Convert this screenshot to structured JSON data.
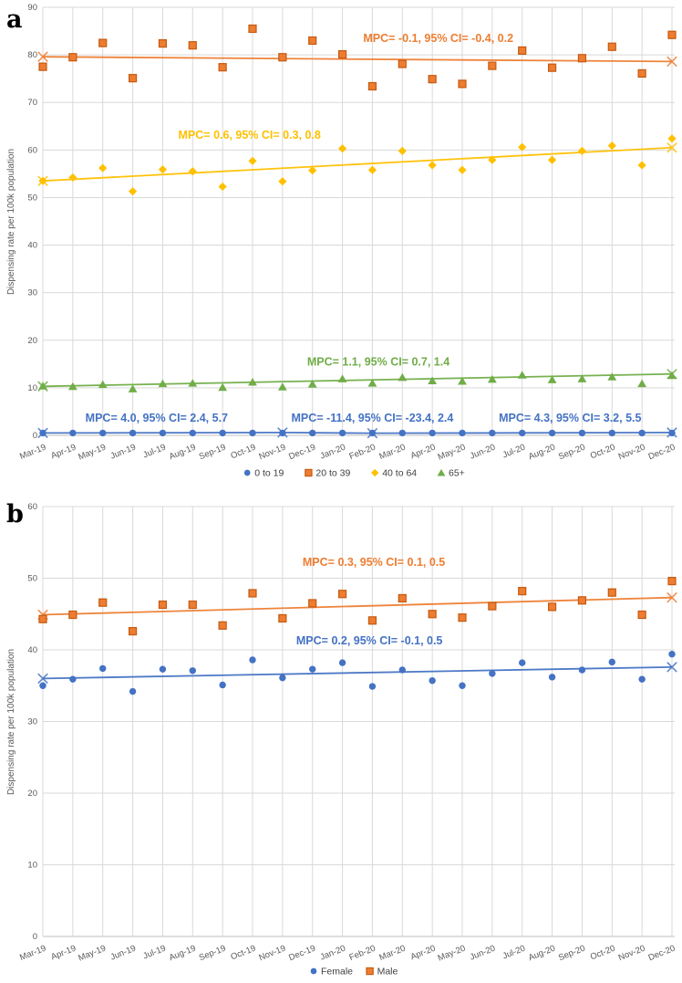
{
  "colors": {
    "blue": "#4472C4",
    "orange": "#ED7D31",
    "orange_border": "#C55A11",
    "yellow": "#FFC000",
    "green": "#70AD47",
    "grid": "#d9d9d9",
    "axis_text": "#595959"
  },
  "chart_data": [
    {
      "type": "scatter",
      "panel_label": "a",
      "ylabel": "Dispensing rate per 100k population",
      "ylim": [
        0,
        90
      ],
      "ytick_step": 10,
      "grid": true,
      "legend_position": "bottom",
      "x": [
        "Mar-19",
        "Apr-19",
        "May-19",
        "Jun-19",
        "Jul-19",
        "Aug-19",
        "Sep-19",
        "Oct-19",
        "Nov-19",
        "Dec-19",
        "Jan-20",
        "Feb-20",
        "Mar-20",
        "Apr-20",
        "May-20",
        "Jun-20",
        "Jul-20",
        "Aug-20",
        "Sep-20",
        "Oct-20",
        "Nov-20",
        "Dec-20"
      ],
      "series": [
        {
          "name": "0 to 19",
          "marker": "circle",
          "color": "#4472C4",
          "values": [
            0.5,
            0.5,
            0.5,
            0.5,
            0.5,
            0.5,
            0.5,
            0.5,
            0.5,
            0.5,
            0.5,
            0.5,
            0.5,
            0.5,
            0.5,
            0.5,
            0.5,
            0.5,
            0.5,
            0.5,
            0.5,
            0.5
          ],
          "trend": {
            "x_index": [
              0,
              8,
              11,
              21
            ],
            "values": [
              0.5,
              0.6,
              0.45,
              0.6
            ]
          }
        },
        {
          "name": "20 to 39",
          "marker": "square",
          "color": "#ED7D31",
          "border": "#C55A11",
          "values": [
            77.5,
            79.5,
            82.5,
            75.1,
            82.4,
            82.0,
            77.4,
            85.5,
            79.5,
            83.0,
            80.1,
            73.4,
            78.1,
            74.9,
            73.9,
            77.7,
            80.9,
            77.3,
            79.3,
            81.7,
            76.1,
            84.2
          ],
          "trend": {
            "x_index": [
              0,
              21
            ],
            "values": [
              79.6,
              78.6
            ]
          }
        },
        {
          "name": "40 to 64",
          "marker": "diamond",
          "color": "#FFC000",
          "values": [
            53.5,
            54.2,
            56.2,
            51.3,
            55.9,
            55.5,
            52.3,
            57.7,
            53.4,
            55.7,
            60.3,
            55.8,
            59.8,
            56.8,
            55.8,
            57.9,
            60.6,
            57.9,
            59.8,
            60.9,
            56.8,
            62.4
          ],
          "trend": {
            "x_index": [
              0,
              21
            ],
            "values": [
              53.5,
              60.5
            ]
          }
        },
        {
          "name": "65+",
          "marker": "triangle",
          "color": "#70AD47",
          "values": [
            10.4,
            10.3,
            10.7,
            9.8,
            10.9,
            11.0,
            10.1,
            11.2,
            10.2,
            10.8,
            11.9,
            11.0,
            12.2,
            11.5,
            11.4,
            11.8,
            12.7,
            11.7,
            11.9,
            12.3,
            10.9,
            12.6
          ],
          "trend": {
            "x_index": [
              0,
              21
            ],
            "values": [
              10.3,
              12.9
            ]
          }
        }
      ],
      "annotations": [
        {
          "text": "MPC= -0.1, 95% CI= -0.4, 0.2",
          "color": "#ED7D31",
          "x_index": 13.2,
          "value": 83.5
        },
        {
          "text": "MPC= 0.6, 95% CI= 0.3, 0.8",
          "color": "#FFC000",
          "x_index": 6.9,
          "value": 63.1
        },
        {
          "text": "MPC= 1.1, 95% CI= 0.7, 1.4",
          "color": "#70AD47",
          "x_index": 11.2,
          "value": 15.4
        },
        {
          "text": "MPC= 4.0, 95% CI= 2.4, 5.7",
          "color": "#4472C4",
          "x_index": 3.8,
          "value": 3.6
        },
        {
          "text": "MPC= -11.4, 95% CI= -23.4, 2.4",
          "color": "#4472C4",
          "x_index": 11.0,
          "value": 3.6
        },
        {
          "text": "MPC= 4.3, 95% CI= 3.2, 5.5",
          "color": "#4472C4",
          "x_index": 17.6,
          "value": 3.6
        }
      ]
    },
    {
      "type": "scatter",
      "panel_label": "b",
      "ylabel": "Dispensing rate per 100k population",
      "ylim": [
        0,
        60
      ],
      "ytick_step": 10,
      "grid": true,
      "legend_position": "bottom",
      "x": [
        "Mar-19",
        "Apr-19",
        "May-19",
        "Jun-19",
        "Jul-19",
        "Aug-19",
        "Sep-19",
        "Oct-19",
        "Nov-19",
        "Dec-19",
        "Jan-20",
        "Feb-20",
        "Mar-20",
        "Apr-20",
        "May-20",
        "Jun-20",
        "Jul-20",
        "Aug-20",
        "Sep-20",
        "Oct-20",
        "Nov-20",
        "Dec-20"
      ],
      "series": [
        {
          "name": "Female",
          "marker": "circle",
          "color": "#4472C4",
          "values": [
            35.0,
            35.9,
            37.4,
            34.2,
            37.3,
            37.1,
            35.1,
            38.6,
            36.1,
            37.3,
            38.2,
            34.9,
            37.2,
            35.7,
            35.0,
            36.7,
            38.2,
            36.2,
            37.2,
            38.3,
            35.9,
            39.4
          ],
          "trend": {
            "x_index": [
              0,
              21
            ],
            "values": [
              36.0,
              37.6
            ]
          }
        },
        {
          "name": "Male",
          "marker": "square",
          "color": "#ED7D31",
          "border": "#C55A11",
          "values": [
            44.3,
            44.9,
            46.6,
            42.6,
            46.3,
            46.3,
            43.4,
            47.9,
            44.4,
            46.5,
            47.8,
            44.1,
            47.2,
            45.0,
            44.5,
            46.1,
            48.2,
            46.0,
            46.9,
            48.0,
            44.9,
            49.6
          ],
          "trend": {
            "x_index": [
              0,
              21
            ],
            "values": [
              44.9,
              47.3
            ]
          }
        }
      ],
      "annotations": [
        {
          "text": "MPC= 0.3, 95% CI= 0.1, 0.5",
          "color": "#ED7D31",
          "x_index": 11.05,
          "value": 52.2
        },
        {
          "text": "MPC= 0.2, 95% CI= -0.1, 0.5",
          "color": "#4472C4",
          "x_index": 10.9,
          "value": 41.3
        }
      ]
    }
  ]
}
